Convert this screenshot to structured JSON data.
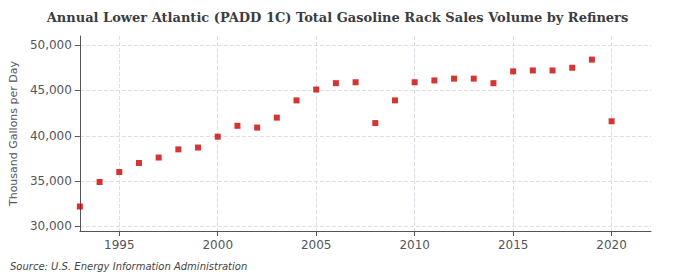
{
  "chart_data": {
    "type": "scatter",
    "title": "Annual Lower Atlantic (PADD 1C) Total Gasoline Rack Sales Volume by Refiners",
    "ylabel": "Thousand Gallons per Day",
    "annotations": [
      "Source: U.S. Energy Information Administration"
    ],
    "x": [
      1993,
      1994,
      1995,
      1996,
      1997,
      1998,
      1999,
      2000,
      2001,
      2002,
      2003,
      2004,
      2005,
      2006,
      2007,
      2008,
      2009,
      2010,
      2011,
      2012,
      2013,
      2014,
      2015,
      2016,
      2017,
      2018,
      2019,
      2020
    ],
    "values": [
      32200,
      34900,
      36000,
      37000,
      37600,
      38500,
      38700,
      39900,
      41100,
      40900,
      42000,
      43900,
      45100,
      45800,
      45900,
      41400,
      43900,
      45900,
      46100,
      46300,
      46300,
      45800,
      47100,
      47200,
      47200,
      47500,
      48400,
      41600
    ],
    "color": "#cc0000",
    "marker": "square",
    "xlim": [
      1993,
      2022
    ],
    "xticks": [
      1995,
      2000,
      2005,
      2010,
      2015,
      2020
    ],
    "ylim": [
      29500,
      51000
    ],
    "yticks": [
      {
        "value": 30000,
        "label": "30,000"
      },
      {
        "value": 35000,
        "label": "35,000"
      },
      {
        "value": 40000,
        "label": "40,000"
      },
      {
        "value": 45000,
        "label": "45,000"
      },
      {
        "value": 50000,
        "label": "50,000"
      }
    ],
    "grid": true
  }
}
